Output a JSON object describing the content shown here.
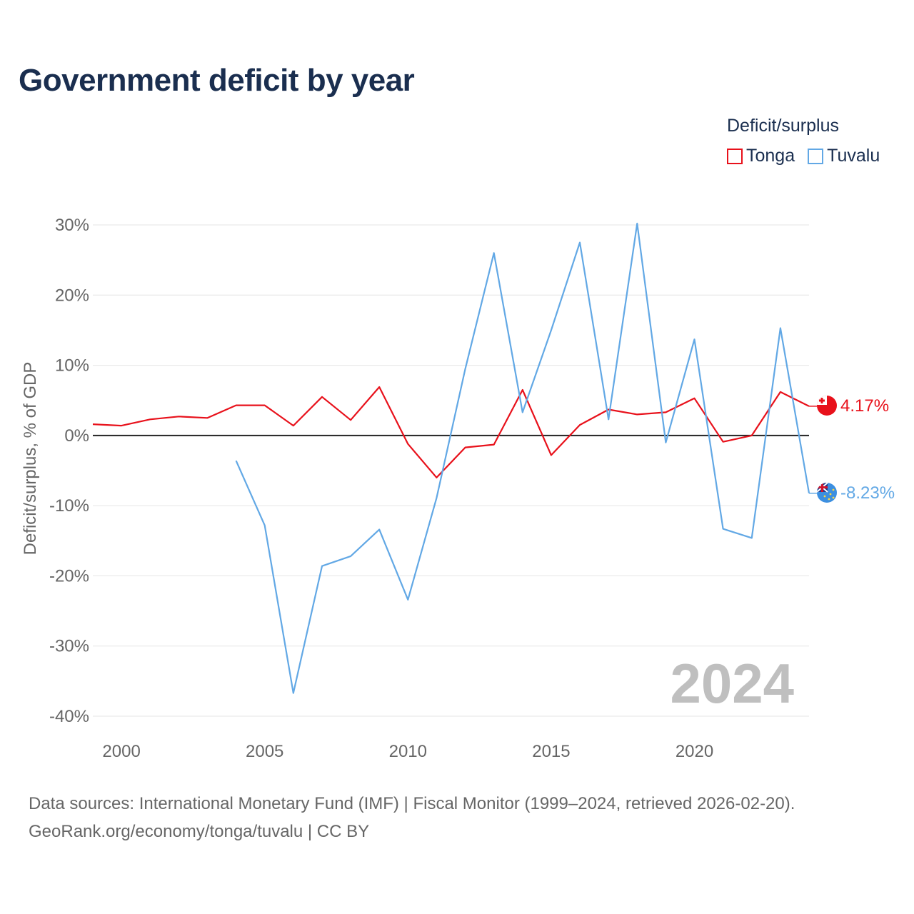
{
  "title": "Government deficit by year",
  "legend": {
    "title": "Deficit/surplus",
    "items": [
      {
        "label": "Tonga",
        "color": "#e8111b"
      },
      {
        "label": "Tuvalu",
        "color": "#62a8e5"
      }
    ]
  },
  "year_watermark": "2024",
  "end_labels": {
    "tonga": "4.17%",
    "tuvalu": "-8.23%"
  },
  "sources": {
    "line1": "Data sources: International Monetary Fund (IMF) | Fiscal Monitor (1999–2024, retrieved 2026-02-20).",
    "line2": "GeoRank.org/economy/tonga/tuvalu | CC BY"
  },
  "chart_data": {
    "type": "line",
    "title": "Government deficit by year",
    "xlabel": "",
    "ylabel": "Deficit/surplus, % of GDP",
    "xlim": [
      1999,
      2024
    ],
    "ylim": [
      -40,
      30
    ],
    "xticks": [
      2000,
      2005,
      2010,
      2015,
      2020
    ],
    "yticks": [
      30,
      20,
      10,
      0,
      -10,
      -20,
      -30,
      -40
    ],
    "ytick_labels": [
      "30%",
      "20%",
      "10%",
      "0%",
      "-10%",
      "-20%",
      "-30%",
      "-40%"
    ],
    "grid": true,
    "legend_position": "top-right",
    "series": [
      {
        "name": "Tonga",
        "color": "#e8111b",
        "x": [
          1999,
          2000,
          2001,
          2002,
          2003,
          2004,
          2005,
          2006,
          2007,
          2008,
          2009,
          2010,
          2011,
          2012,
          2013,
          2014,
          2015,
          2016,
          2017,
          2018,
          2019,
          2020,
          2021,
          2022,
          2023,
          2024
        ],
        "values": [
          1.6,
          1.4,
          2.3,
          2.7,
          2.5,
          4.3,
          4.3,
          1.4,
          5.5,
          2.2,
          6.9,
          -1.2,
          -6.0,
          -1.7,
          -1.3,
          6.5,
          -2.8,
          1.5,
          3.7,
          3.0,
          3.3,
          5.3,
          -0.9,
          0.0,
          6.2,
          4.17
        ]
      },
      {
        "name": "Tuvalu",
        "color": "#62a8e5",
        "x": [
          2004,
          2005,
          2006,
          2007,
          2008,
          2009,
          2010,
          2011,
          2012,
          2013,
          2014,
          2015,
          2016,
          2017,
          2018,
          2019,
          2020,
          2021,
          2022,
          2023,
          2024
        ],
        "values": [
          -3.6,
          -12.8,
          -36.7,
          -18.6,
          -17.2,
          -13.4,
          -23.4,
          -8.9,
          9.5,
          26.0,
          3.3,
          15.0,
          27.5,
          2.3,
          30.2,
          -1.0,
          13.7,
          -13.3,
          -14.6,
          15.3,
          -8.23
        ]
      }
    ]
  }
}
